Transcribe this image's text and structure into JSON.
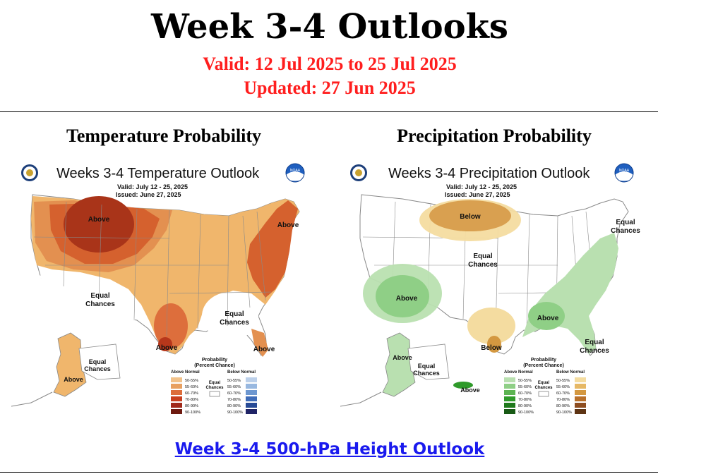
{
  "header": {
    "title": "Week 3-4 Outlooks",
    "valid": "Valid: 12 Jul 2025 to 25 Jul 2025",
    "updated": "Updated: 27 Jun 2025"
  },
  "temperature": {
    "section_title": "Temperature Probability",
    "map_title": "Weeks 3-4 Temperature Outlook",
    "valid": "Valid:  July 12 - 25, 2025",
    "issued": "Issued:  June 27, 2025",
    "noaa_label": "NOAA",
    "labels": {
      "above_nw": "Above",
      "above_ne": "Above",
      "equal_sw_1": "Equal",
      "equal_sw_2": "Chances",
      "equal_se_1": "Equal",
      "equal_se_2": "Chances",
      "above_tx": "Above",
      "above_fl": "Above",
      "equal_ak_1": "Equal",
      "equal_ak_2": "Chances",
      "above_ak": "Above"
    },
    "legend": {
      "title_1": "Probability",
      "title_2": "(Percent Chance)",
      "left_head": "Above Normal",
      "right_head": "Below Normal",
      "equal_1": "Equal",
      "equal_2": "Chances",
      "ranges": [
        "50-55%",
        "55-60%",
        "60-70%",
        "70-80%",
        "80-90%",
        "90-100%"
      ],
      "left_colors": [
        "#f2c28a",
        "#e8a060",
        "#dd6e3c",
        "#c8401f",
        "#a0291a",
        "#6e1a10"
      ],
      "right_colors": [
        "#bcd0ea",
        "#98b8e0",
        "#6d97d0",
        "#3f6cb8",
        "#274a96",
        "#202466"
      ]
    }
  },
  "precipitation": {
    "section_title": "Precipitation Probability",
    "map_title": "Weeks 3-4 Precipitation Outlook",
    "valid": "Valid:  July 12 - 25, 2025",
    "issued": "Issued:  June 27, 2025",
    "noaa_label": "NOAA",
    "labels": {
      "below_n": "Below",
      "equal_c_1": "Equal",
      "equal_c_2": "Chances",
      "equal_ne_1": "Equal",
      "equal_ne_2": "Chances",
      "above_sw": "Above",
      "above_se": "Above",
      "below_tx": "Below",
      "equal_fl_1": "Equal",
      "equal_fl_2": "Chances",
      "above_ak": "Above",
      "equal_ak_1": "Equal",
      "equal_ak_2": "Chances",
      "above_ak2": "Above"
    },
    "legend": {
      "title_1": "Probability",
      "title_2": "(Percent Chance)",
      "left_head": "Above Normal",
      "right_head": "Below Normal",
      "equal_1": "Equal",
      "equal_2": "Chances",
      "ranges": [
        "50-55%",
        "55-60%",
        "60-70%",
        "70-80%",
        "80-90%",
        "90-100%"
      ],
      "left_colors": [
        "#b9e0b0",
        "#8fcf86",
        "#5cb452",
        "#2f9a2a",
        "#1f7a1c",
        "#185a15"
      ],
      "right_colors": [
        "#f4dca0",
        "#e6b865",
        "#d49840",
        "#b8702a",
        "#8e4d1f",
        "#5e3414"
      ]
    }
  },
  "footer": {
    "link": "Week 3-4 500-hPa Height Outlook"
  }
}
